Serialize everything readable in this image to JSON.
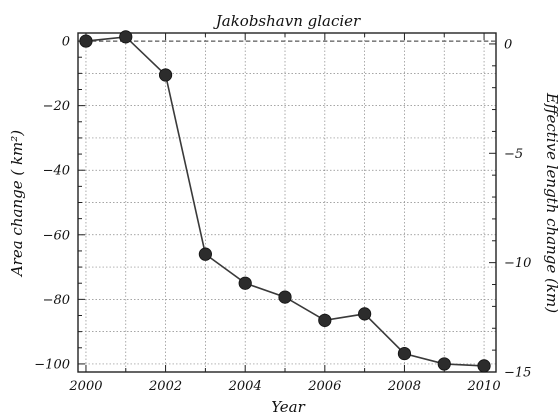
{
  "chart_data": {
    "type": "line",
    "title": "Jakobshavn glacier",
    "xlabel": "Year",
    "ylabel_left": "Area change ( km²)",
    "ylabel_right": "Effective length change (km)",
    "xlim": [
      1999.8,
      2010.3
    ],
    "ylim_left": [
      -102.5,
      2.5
    ],
    "ylim_right": [
      -15.0,
      0.5
    ],
    "x_ticks": [
      2000,
      2002,
      2004,
      2006,
      2008,
      2010
    ],
    "y_ticks_left": [
      0,
      -20,
      -40,
      -60,
      -80,
      -100
    ],
    "y_ticks_right": [
      0,
      -5,
      -10,
      -15
    ],
    "grid": true,
    "series": [
      {
        "x": [
          2000,
          2001,
          2002,
          2003,
          2004,
          2005,
          2006,
          2007,
          2008,
          2009,
          2010
        ],
        "values": [
          0.0,
          1.3,
          -10.5,
          -66.0,
          -75.0,
          -79.3,
          -86.5,
          -84.5,
          -96.8,
          -100.0,
          -100.6
        ]
      }
    ],
    "colors": {
      "line": "#3a3a3a",
      "marker": "#2c2c2c",
      "grid": "#888888",
      "axes": "#222222"
    }
  }
}
